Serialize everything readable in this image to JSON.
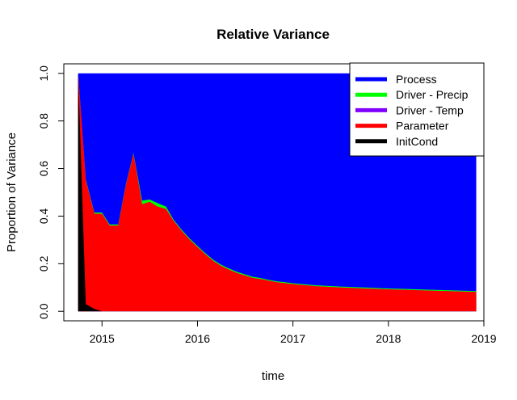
{
  "chart_data": {
    "type": "area",
    "title": "Relative Variance",
    "xlabel": "time",
    "ylabel": "Proportion of Variance",
    "xlim": [
      2014.6,
      2019.0
    ],
    "ylim": [
      -0.04,
      1.04
    ],
    "x_ticks": [
      2015,
      2016,
      2017,
      2018,
      2019
    ],
    "x_tick_labels": [
      "2015",
      "2016",
      "2017",
      "2018",
      "2019"
    ],
    "y_ticks": [
      0.0,
      0.2,
      0.4,
      0.6,
      0.8,
      1.0
    ],
    "y_tick_labels": [
      "0.0",
      "0.2",
      "0.4",
      "0.6",
      "0.8",
      "1.0"
    ],
    "grid": false,
    "stacked": true,
    "legend": {
      "position": "top-right",
      "entries": [
        {
          "label": "Process",
          "color": "#0000ff"
        },
        {
          "label": "Driver - Precip",
          "color": "#00ff00"
        },
        {
          "label": "Driver - Temp",
          "color": "#8000ff"
        },
        {
          "label": "Parameter",
          "color": "#ff0000"
        },
        {
          "label": "InitCond",
          "color": "#000000"
        }
      ]
    },
    "x": [
      2014.75,
      2014.83,
      2014.92,
      2015.0,
      2015.08,
      2015.17,
      2015.25,
      2015.33,
      2015.42,
      2015.5,
      2015.58,
      2015.67,
      2015.75,
      2015.83,
      2015.92,
      2016.0,
      2016.08,
      2016.17,
      2016.25,
      2016.33,
      2016.42,
      2016.5,
      2016.58,
      2016.67,
      2016.75,
      2016.83,
      2016.92,
      2017.0,
      2017.25,
      2017.5,
      2017.75,
      2018.0,
      2018.25,
      2018.5,
      2018.75,
      2018.92
    ],
    "cumulative_series": [
      {
        "name": "InitCond",
        "color": "#000000",
        "values": [
          1.0,
          0.03,
          0.01,
          0.0,
          0.0,
          0.0,
          0.0,
          0.0,
          0.0,
          0.0,
          0.0,
          0.0,
          0.0,
          0.0,
          0.0,
          0.0,
          0.0,
          0.0,
          0.0,
          0.0,
          0.0,
          0.0,
          0.0,
          0.0,
          0.0,
          0.0,
          0.0,
          0.0,
          0.0,
          0.0,
          0.0,
          0.0,
          0.0,
          0.0,
          0.0,
          0.0
        ]
      },
      {
        "name": "Parameter",
        "color": "#ff0000",
        "values": [
          1.0,
          0.55,
          0.41,
          0.41,
          0.36,
          0.36,
          0.53,
          0.66,
          0.45,
          0.46,
          0.44,
          0.43,
          0.38,
          0.34,
          0.3,
          0.27,
          0.24,
          0.21,
          0.19,
          0.175,
          0.16,
          0.15,
          0.14,
          0.135,
          0.128,
          0.122,
          0.118,
          0.114,
          0.105,
          0.1,
          0.096,
          0.092,
          0.089,
          0.086,
          0.083,
          0.081
        ]
      },
      {
        "name": "Driver - Temp",
        "color": "#8000ff",
        "values": [
          1.0,
          0.55,
          0.41,
          0.41,
          0.36,
          0.36,
          0.53,
          0.66,
          0.45,
          0.46,
          0.44,
          0.43,
          0.38,
          0.34,
          0.3,
          0.27,
          0.24,
          0.21,
          0.19,
          0.175,
          0.16,
          0.15,
          0.14,
          0.135,
          0.128,
          0.122,
          0.118,
          0.114,
          0.105,
          0.1,
          0.096,
          0.092,
          0.089,
          0.086,
          0.083,
          0.081
        ]
      },
      {
        "name": "Driver - Precip",
        "color": "#00ff00",
        "values": [
          1.0,
          0.555,
          0.415,
          0.415,
          0.365,
          0.365,
          0.535,
          0.665,
          0.465,
          0.47,
          0.455,
          0.44,
          0.385,
          0.345,
          0.305,
          0.275,
          0.245,
          0.215,
          0.195,
          0.18,
          0.165,
          0.155,
          0.145,
          0.139,
          0.132,
          0.126,
          0.122,
          0.118,
          0.109,
          0.104,
          0.1,
          0.096,
          0.093,
          0.09,
          0.087,
          0.085
        ]
      },
      {
        "name": "Process",
        "color": "#0000ff",
        "values": [
          1.0,
          1.0,
          1.0,
          1.0,
          1.0,
          1.0,
          1.0,
          1.0,
          1.0,
          1.0,
          1.0,
          1.0,
          1.0,
          1.0,
          1.0,
          1.0,
          1.0,
          1.0,
          1.0,
          1.0,
          1.0,
          1.0,
          1.0,
          1.0,
          1.0,
          1.0,
          1.0,
          1.0,
          1.0,
          1.0,
          1.0,
          1.0,
          1.0,
          1.0,
          1.0,
          1.0
        ]
      }
    ]
  }
}
